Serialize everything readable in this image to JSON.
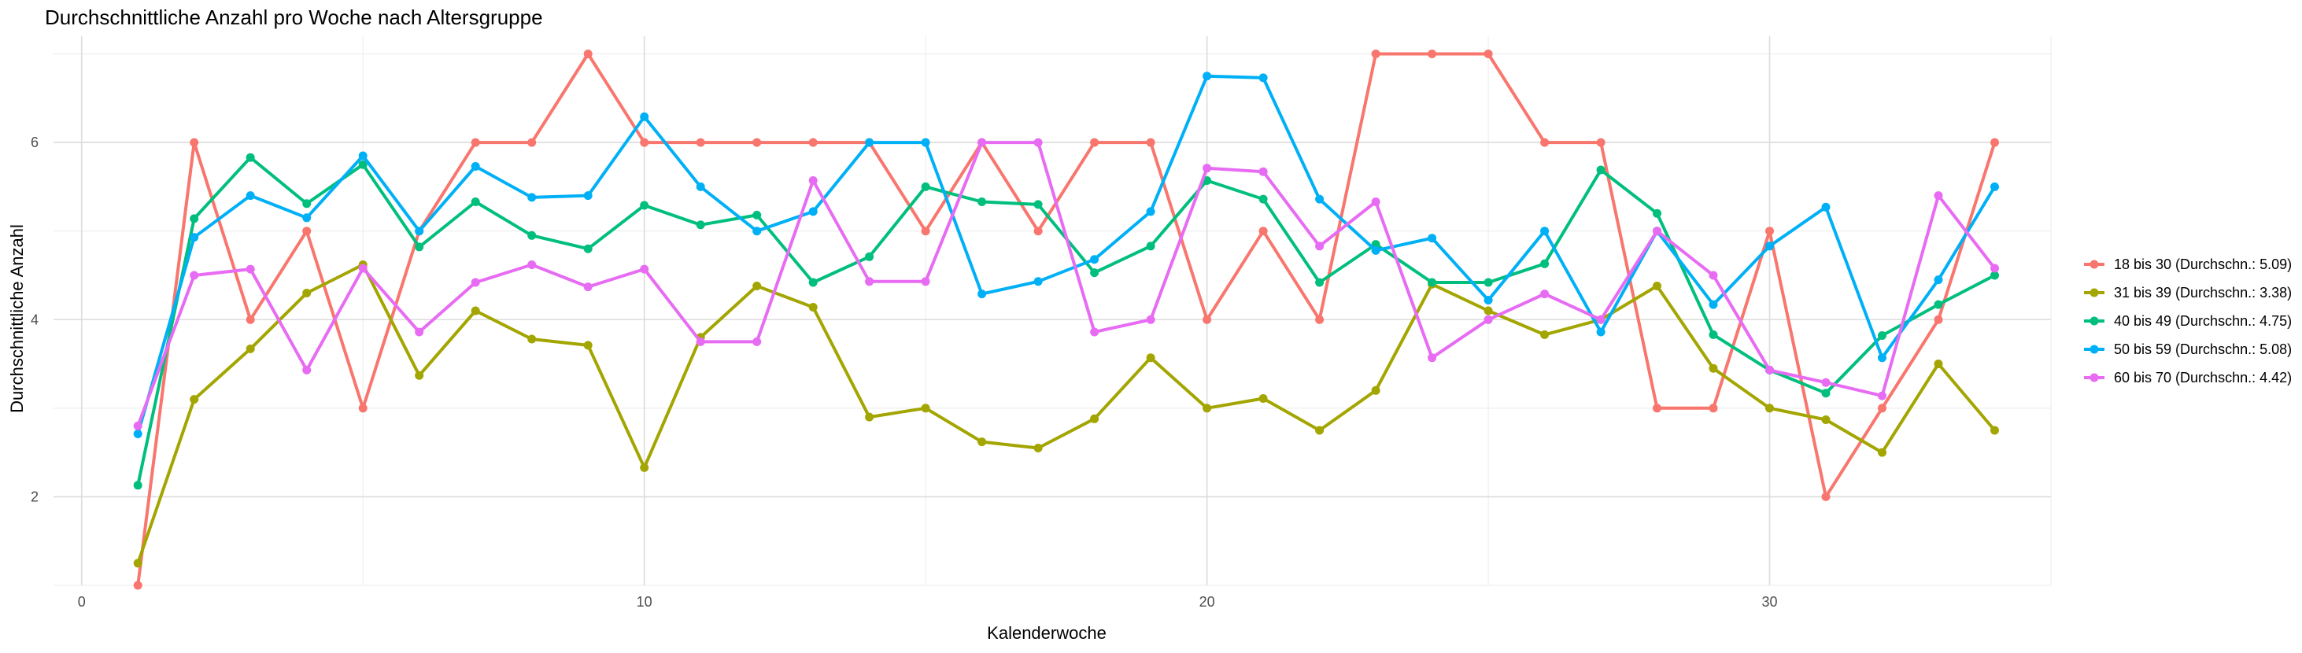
{
  "chart_data": {
    "type": "line",
    "title": "Durchschnittliche Anzahl pro Woche nach Altersgruppe",
    "xlabel": "Kalenderwoche",
    "ylabel": "Durchschnittliche Anzahl",
    "xlim": [
      -0.5,
      35
    ],
    "ylim": [
      1,
      7.2
    ],
    "xticks": [
      0,
      10,
      20,
      30
    ],
    "yticks": [
      2,
      4,
      6
    ],
    "grid": true,
    "legend": "right",
    "x": [
      1,
      2,
      3,
      4,
      5,
      6,
      7,
      8,
      9,
      10,
      11,
      12,
      13,
      14,
      15,
      16,
      17,
      18,
      19,
      20,
      21,
      22,
      23,
      24,
      25,
      26,
      27,
      28,
      29,
      30,
      31,
      32,
      33,
      34
    ],
    "series": [
      {
        "name": "18 bis 30 (Durchschn.: 5.09)",
        "color": "#F8766D",
        "values": [
          1.0,
          6.0,
          4.0,
          5.0,
          3.0,
          5.0,
          6.0,
          6.0,
          7.0,
          6.0,
          6.0,
          6.0,
          6.0,
          6.0,
          5.0,
          6.0,
          5.0,
          6.0,
          6.0,
          4.0,
          5.0,
          4.0,
          7.0,
          7.0,
          7.0,
          6.0,
          6.0,
          3.0,
          3.0,
          5.0,
          2.0,
          3.0,
          4.0,
          6.0
        ]
      },
      {
        "name": "31 bis 39 (Durchschn.: 3.38)",
        "color": "#A3A500",
        "values": [
          1.25,
          3.1,
          3.67,
          4.3,
          4.62,
          3.37,
          4.1,
          3.78,
          3.71,
          2.33,
          3.8,
          4.38,
          4.14,
          2.9,
          3.0,
          2.62,
          2.55,
          2.88,
          3.57,
          3.0,
          3.11,
          2.75,
          3.2,
          4.4,
          4.1,
          3.83,
          4.0,
          4.38,
          3.45,
          3.0,
          2.87,
          2.5,
          3.5,
          2.75
        ]
      },
      {
        "name": "40 bis 49 (Durchschn.: 4.75)",
        "color": "#00BF7D",
        "values": [
          2.13,
          5.14,
          5.83,
          5.31,
          5.75,
          4.82,
          5.33,
          4.95,
          4.8,
          5.29,
          5.07,
          5.18,
          4.42,
          4.71,
          5.5,
          5.33,
          5.3,
          4.53,
          4.83,
          5.57,
          5.36,
          4.42,
          4.85,
          4.42,
          4.42,
          4.63,
          5.69,
          5.2,
          3.83,
          3.43,
          3.17,
          3.82,
          4.17,
          4.5
        ]
      },
      {
        "name": "50 bis 59 (Durchschn.: 5.08)",
        "color": "#00B0F6",
        "values": [
          2.71,
          4.93,
          5.4,
          5.15,
          5.85,
          5.0,
          5.73,
          5.38,
          5.4,
          6.29,
          5.5,
          5.0,
          5.22,
          6.0,
          6.0,
          4.29,
          4.43,
          4.68,
          5.22,
          6.75,
          6.73,
          5.36,
          4.78,
          4.92,
          4.22,
          5.0,
          3.86,
          5.0,
          4.17,
          4.83,
          5.27,
          3.57,
          4.45,
          5.5
        ]
      },
      {
        "name": "60 bis 70 (Durchschn.: 4.42)",
        "color": "#E76BF3",
        "values": [
          2.8,
          4.5,
          4.57,
          3.43,
          4.58,
          3.86,
          4.42,
          4.62,
          4.37,
          4.57,
          3.75,
          3.75,
          5.57,
          4.43,
          4.43,
          6.0,
          6.0,
          3.86,
          4.0,
          5.71,
          5.67,
          4.83,
          5.33,
          3.57,
          4.0,
          4.29,
          4.0,
          5.0,
          4.5,
          3.43,
          3.29,
          3.14,
          5.4,
          4.58
        ]
      }
    ]
  }
}
